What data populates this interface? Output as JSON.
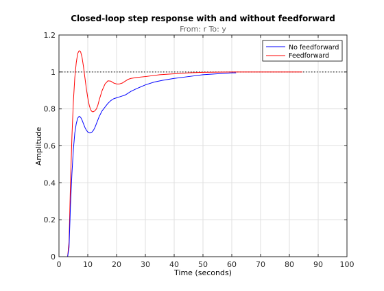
{
  "chart_data": {
    "type": "line",
    "title": "Closed-loop step response with and without feedforward",
    "subtitle": "From: r  To: y",
    "xlabel": "Time (seconds)",
    "ylabel": "Amplitude",
    "xlim": [
      0,
      100
    ],
    "ylim": [
      0,
      1.2
    ],
    "xticks": [
      0,
      10,
      20,
      30,
      40,
      50,
      60,
      70,
      80,
      90,
      100
    ],
    "yticks": [
      0,
      0.2,
      0.4,
      0.6,
      0.8,
      1,
      1.2
    ],
    "xtick_labels": [
      "0",
      "10",
      "20",
      "30",
      "40",
      "50",
      "60",
      "70",
      "80",
      "90",
      "100"
    ],
    "ytick_labels": [
      "0",
      "0.2",
      "0.4",
      "0.6",
      "0.8",
      "1",
      "1.2"
    ],
    "grid": true,
    "legend_position": "top-right",
    "reference_line": {
      "y": 1,
      "style": "dotted",
      "color": "#000000"
    },
    "series": [
      {
        "name": "No feedforward",
        "color": "#0000ff",
        "x": [
          0,
          3,
          3.5,
          4,
          4.5,
          5,
          5.5,
          6,
          6.5,
          7,
          7.5,
          8,
          8.5,
          9,
          9.5,
          10,
          10.5,
          11,
          11.5,
          12,
          12.5,
          13,
          13.5,
          14,
          15,
          16,
          17,
          18,
          19,
          20,
          21,
          22,
          23,
          24,
          25,
          27,
          30,
          33,
          36,
          40,
          45,
          50,
          55,
          60,
          61.5
        ],
        "values": [
          0,
          0,
          0.05,
          0.28,
          0.45,
          0.58,
          0.67,
          0.72,
          0.75,
          0.76,
          0.755,
          0.74,
          0.72,
          0.7,
          0.685,
          0.675,
          0.67,
          0.67,
          0.675,
          0.685,
          0.7,
          0.72,
          0.74,
          0.76,
          0.79,
          0.81,
          0.83,
          0.845,
          0.855,
          0.86,
          0.865,
          0.87,
          0.875,
          0.885,
          0.895,
          0.91,
          0.93,
          0.945,
          0.955,
          0.965,
          0.975,
          0.985,
          0.99,
          0.995,
          0.995
        ]
      },
      {
        "name": "Feedforward",
        "color": "#ff0000",
        "x": [
          0,
          3,
          3.5,
          4,
          4.5,
          5,
          5.5,
          6,
          6.5,
          7,
          7.5,
          8,
          8.5,
          9,
          9.5,
          10,
          10.5,
          11,
          11.5,
          12,
          12.5,
          13,
          13.5,
          14,
          15,
          16,
          17,
          18,
          19,
          20,
          21,
          22,
          23,
          24,
          25,
          27,
          30,
          35,
          40,
          45,
          50,
          60,
          70,
          80,
          84.5
        ],
        "values": [
          0,
          0,
          0.08,
          0.4,
          0.65,
          0.84,
          0.97,
          1.05,
          1.1,
          1.115,
          1.11,
          1.08,
          1.03,
          0.97,
          0.91,
          0.86,
          0.82,
          0.795,
          0.785,
          0.785,
          0.79,
          0.8,
          0.82,
          0.85,
          0.9,
          0.935,
          0.952,
          0.95,
          0.94,
          0.935,
          0.935,
          0.94,
          0.95,
          0.96,
          0.965,
          0.97,
          0.975,
          0.985,
          0.99,
          0.995,
          0.998,
          1.0,
          1.0,
          1.0,
          1.0
        ]
      }
    ]
  }
}
